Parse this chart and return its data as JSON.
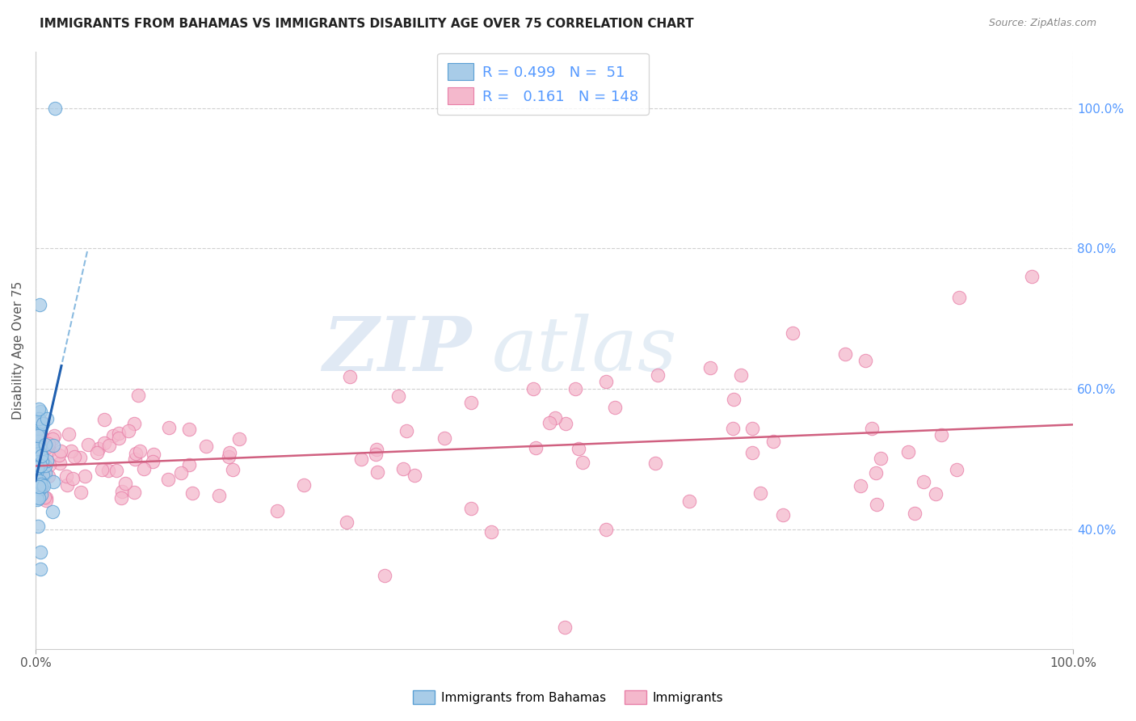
{
  "title": "IMMIGRANTS FROM BAHAMAS VS IMMIGRANTS DISABILITY AGE OVER 75 CORRELATION CHART",
  "source": "Source: ZipAtlas.com",
  "ylabel": "Disability Age Over 75",
  "legend_blue_R": "0.499",
  "legend_blue_N": "51",
  "legend_pink_R": "0.161",
  "legend_pink_N": "148",
  "legend_label_blue": "Immigrants from Bahamas",
  "legend_label_pink": "Immigrants",
  "blue_color": "#a8cce8",
  "pink_color": "#f4b8cc",
  "blue_edge_color": "#5a9fd4",
  "pink_edge_color": "#e87fa8",
  "blue_line_color": "#2060b0",
  "pink_line_color": "#d06080",
  "watermark_zip": "ZIP",
  "watermark_atlas": "atlas",
  "background_color": "#ffffff",
  "grid_color": "#d0d0d0",
  "title_color": "#222222",
  "right_label_color": "#5599ff",
  "bottom_label_color": "#5599ff",
  "seed": 7,
  "xmin": 0.0,
  "xmax": 100.0,
  "ymin": 23.0,
  "ymax": 108.0,
  "yticks": [
    40,
    60,
    80,
    100
  ],
  "xticks": [
    0,
    100
  ]
}
